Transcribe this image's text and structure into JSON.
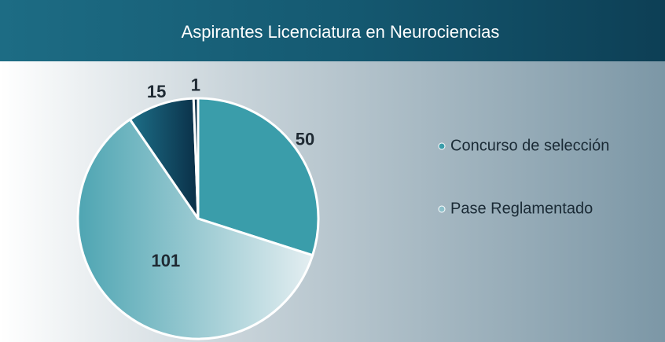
{
  "chart_data": {
    "type": "pie",
    "title": "Aspirantes Licenciatura en Neurociencias",
    "categories": [
      "Concurso de selección",
      "Pase Reglamentado",
      null,
      null
    ],
    "values": [
      50,
      101,
      15,
      1
    ],
    "colors": [
      "#3a9daa",
      "#8cc0ca",
      "#134e68",
      "#0b3048"
    ],
    "legend": "right"
  }
}
